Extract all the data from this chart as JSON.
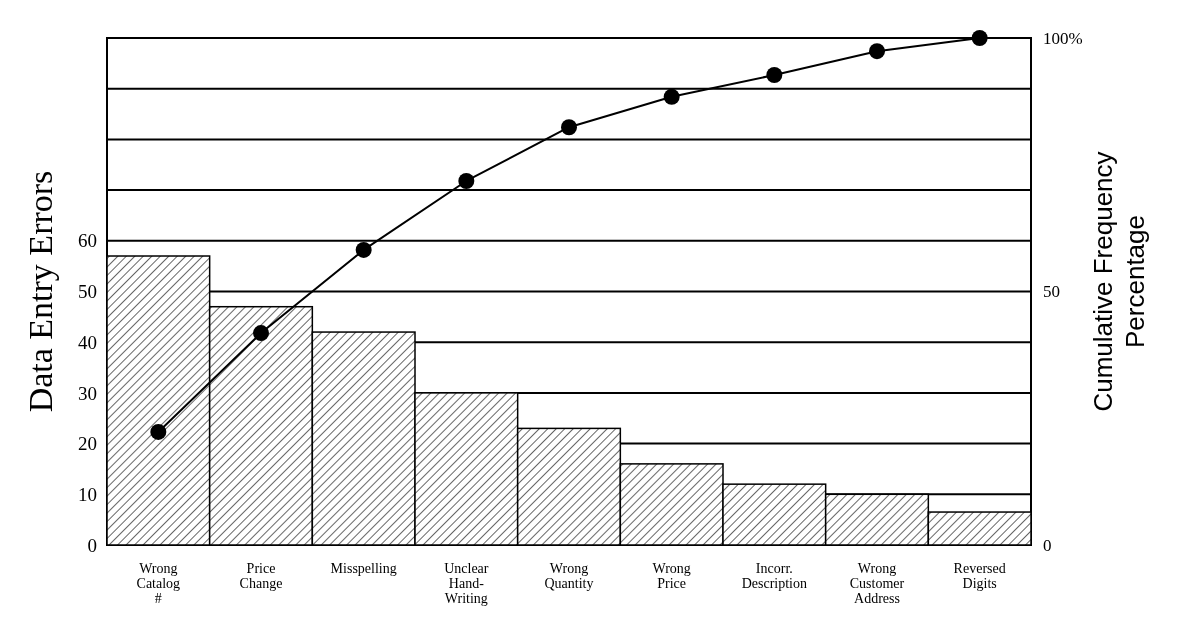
{
  "chart_data": {
    "type": "bar",
    "ylabel": "Data Entry Errors",
    "y2label": "Cumulative Frequency Percentage",
    "categories": [
      "Wrong Catalog #",
      "Price Change",
      "Misspelling",
      "Unclear Hand-Writing",
      "Wrong Quantity",
      "Wrong Price",
      "Incorr. Description",
      "Wrong Customer Address",
      "Reversed Digits"
    ],
    "series": [
      {
        "color": "#ffffff",
        "values": [
          57,
          47,
          42,
          30,
          23,
          16,
          12,
          10,
          6.5
        ]
      },
      {
        "type": "line",
        "color": "#000000",
        "marker": "circle",
        "line_style": "solid",
        "values": [
          22.3,
          41.8,
          58.2,
          71.8,
          82.4,
          88.4,
          92.7,
          97.4,
          100
        ]
      }
    ],
    "ylim": [
      0,
      100
    ],
    "yticks": [
      0,
      10,
      20,
      30,
      40,
      50,
      60,
      {
        "value": 70,
        "label": null
      },
      {
        "value": 80,
        "label": null
      },
      {
        "value": 90,
        "label": null
      },
      {
        "value": 100,
        "label": null
      }
    ],
    "y2lim": [
      0,
      100
    ],
    "y2ticks": [
      {
        "value": 0,
        "label": "0"
      },
      50,
      {
        "value": 100,
        "label": "100%"
      }
    ],
    "grid": "y"
  }
}
